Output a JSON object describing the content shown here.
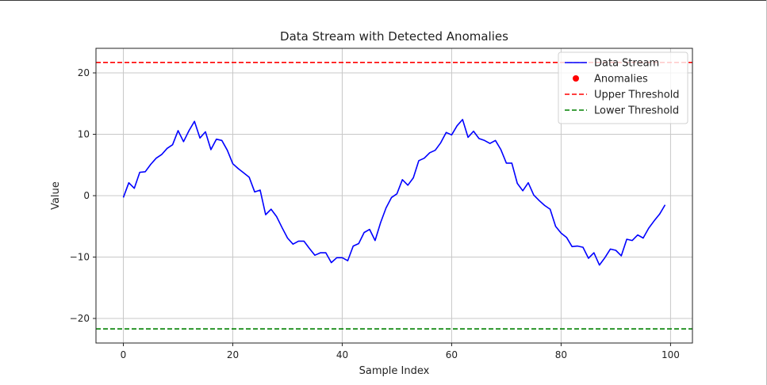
{
  "colors": {
    "stream": "#0000ff",
    "anomaly": "#ff0000",
    "upper": "#ff0000",
    "lower": "#008000",
    "grid": "#c8c8c8",
    "axis": "#222222"
  },
  "chart_data": {
    "type": "line",
    "title": "Data Stream with Detected Anomalies",
    "xlabel": "Sample Index",
    "ylabel": "Value",
    "xlim": [
      -5,
      104
    ],
    "ylim": [
      -24,
      24
    ],
    "xticks": [
      0,
      20,
      40,
      60,
      80,
      100
    ],
    "yticks": [
      -20,
      -10,
      0,
      10,
      20
    ],
    "xtick_labels": [
      "0",
      "20",
      "40",
      "60",
      "80",
      "100"
    ],
    "ytick_labels": [
      "−20",
      "−10",
      "0",
      "10",
      "20"
    ],
    "grid": true,
    "legend": {
      "placement": "top-right",
      "entries": [
        "Data Stream",
        "Anomalies",
        "Upper Threshold",
        "Lower Threshold"
      ]
    },
    "series": [
      {
        "name": "Data Stream",
        "style": "line",
        "x": [
          0,
          1,
          2,
          3,
          4,
          5,
          6,
          7,
          8,
          9,
          10,
          11,
          12,
          13,
          14,
          15,
          16,
          17,
          18,
          19,
          20,
          21,
          22,
          23,
          24,
          25,
          26,
          27,
          28,
          29,
          30,
          31,
          32,
          33,
          34,
          35,
          36,
          37,
          38,
          39,
          40,
          41,
          42,
          43,
          44,
          45,
          46,
          47,
          48,
          49,
          50,
          51,
          52,
          53,
          54,
          55,
          56,
          57,
          58,
          59,
          60,
          61,
          62,
          63,
          64,
          65,
          66,
          67,
          68,
          69,
          70,
          71,
          72,
          73,
          74,
          75,
          76,
          77,
          78,
          79,
          80,
          81,
          82,
          83,
          84,
          85,
          86,
          87,
          88,
          89,
          90,
          91,
          92,
          93,
          94,
          95,
          96,
          97,
          98,
          99
        ],
        "values": [
          -0.3,
          2.1,
          1.2,
          3.8,
          3.9,
          5.1,
          6.1,
          6.7,
          7.7,
          8.3,
          10.6,
          8.8,
          10.6,
          12.1,
          9.4,
          10.4,
          7.5,
          9.2,
          9.0,
          7.4,
          5.2,
          4.4,
          3.7,
          3.0,
          0.6,
          0.9,
          -3.1,
          -2.2,
          -3.4,
          -5.2,
          -6.9,
          -7.9,
          -7.4,
          -7.4,
          -8.6,
          -9.7,
          -9.3,
          -9.3,
          -10.9,
          -10.1,
          -10.1,
          -10.6,
          -8.2,
          -7.8,
          -6.0,
          -5.5,
          -7.3,
          -4.4,
          -2.0,
          -0.3,
          0.3,
          2.6,
          1.7,
          2.9,
          5.7,
          6.1,
          7.0,
          7.4,
          8.6,
          10.3,
          9.9,
          11.4,
          12.4,
          9.5,
          10.5,
          9.3,
          9.0,
          8.5,
          9.0,
          7.5,
          5.3,
          5.3,
          2.0,
          0.8,
          2.1,
          0.1,
          -0.8,
          -1.6,
          -2.2,
          -5.0,
          -6.1,
          -6.8,
          -8.3,
          -8.2,
          -8.4,
          -10.2,
          -9.3,
          -11.3,
          -10.1,
          -8.7,
          -8.9,
          -9.8,
          -7.1,
          -7.3,
          -6.4,
          -6.9,
          -5.3,
          -4.1,
          -3.0,
          -1.5
        ]
      },
      {
        "name": "Anomalies",
        "style": "scatter",
        "x": [],
        "values": []
      },
      {
        "name": "Upper Threshold",
        "style": "hline",
        "value": 21.7
      },
      {
        "name": "Lower Threshold",
        "style": "hline",
        "value": -21.7
      }
    ]
  }
}
